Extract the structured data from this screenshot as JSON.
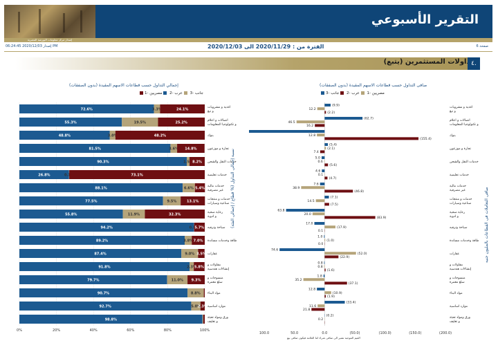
{
  "header": {
    "title": "التقرير الأسبوعي",
    "subtitle": "إصدار مركز معلومات البورصة المصرية",
    "page": "صفحة 6",
    "period_label": "الفترة من : 2020/11/29 الى 2020/12/03",
    "issued": "إصدار 2020/12/03 06:24:45 PM"
  },
  "section": {
    "number": "٤.",
    "title": "تداولات المستثمرين (يتبع)"
  },
  "colors": {
    "series1": "#1c5a91",
    "series2": "#b5a47a",
    "series3": "#6e0f12"
  },
  "footnote": "القيم الموجبة تشير الى صافى شراء اما العلامة فيكون صافى بيع",
  "chart_data": [
    {
      "type": "bar",
      "title": "إجمالي التداول حسب قطاعات الاسهم المقيدة (بدون الصفقات)",
      "ylabel": "نسبة إجمالى التداول (% قطاع / إجمالى الفئة)",
      "legend": [
        "مصريين -1",
        "عرب -2",
        "جانب -3"
      ],
      "stacked": true,
      "xticks": [
        "0%",
        "20%",
        "40%",
        "60%",
        "80%",
        "100%"
      ],
      "categories": [
        "اغذية و مشروبات و تبغ",
        "اتصالات و اعلام و تكنولوجيا المعلومات",
        "بنوك",
        "تجارة و موزعون",
        "خدمات النقل والشحن",
        "خدمات تعليمية",
        "خدمات مالية غير مصرفية",
        "خدمات و منتجات صناعية وسيارات",
        "رعاية صحية و ادوية",
        "سياحة وترفيه",
        "طاقة وخدمات مساندة",
        "عقارات",
        "مقاولات و إنشاءات هندسية",
        "منسوجات و سلع معمرة",
        "مواد البناء",
        "موارد اساسية",
        "ورق ومواد تعبئة و تغليف"
      ],
      "series": [
        {
          "name": "مصريين -1",
          "values": [
            72.6,
            55.3,
            48.8,
            81.5,
            90.3,
            26.8,
            88.1,
            77.5,
            55.8,
            94.2,
            89.2,
            87.4,
            91.8,
            79.7,
            90.7,
            92.7,
            98.8
          ],
          "labels": [
            "72.6%",
            "55.3%",
            "48.8%",
            "81.5%",
            "90.3%",
            "26.8%",
            "88.1%",
            "77.5%",
            "55.8%",
            "94.2%",
            "89.2%",
            "87.4%",
            "91.8%",
            "79.7%",
            "90.7%",
            "92.7%",
            "98.8%"
          ]
        },
        {
          "name": "عرب -2",
          "values": [
            3.3,
            19.5,
            3.0,
            3.6,
            1.5,
            0.1,
            6.6,
            9.5,
            11.9,
            0.1,
            3.8,
            9.0,
            2.3,
            11.0,
            8.8,
            5.0,
            0.4
          ],
          "labels": [
            "3.3%",
            "19.5%",
            "3.0%",
            "3.6%",
            "1.5%",
            "0.1%",
            "6.6%",
            "9.5%",
            "11.9%",
            "0.1%",
            "3.8%",
            "9.0%",
            "2.3%",
            "11.0%",
            "8.8%",
            "5.0%",
            ""
          ]
        },
        {
          "name": "جانب -3",
          "values": [
            24.1,
            25.2,
            48.2,
            14.8,
            8.2,
            73.1,
            5.4,
            13.1,
            32.3,
            5.7,
            7.0,
            3.5,
            5.8,
            9.3,
            0.5,
            2.3,
            0.8
          ],
          "labels": [
            "24.1%",
            "25.2%",
            "48.2%",
            "14.8%",
            "8.2%",
            "73.1%",
            "5.4%",
            "13.1%",
            "32.3%",
            "5.7%",
            "7.0%",
            "3.5%",
            "5.8%",
            "9.3%",
            "",
            "2.3%",
            ""
          ]
        }
      ]
    },
    {
      "type": "bar",
      "title": "صافى التداول حسب قطاعات الاسهم المقيدة (بدون الصفقات)",
      "ylabel": "صافى التعاملات فى القطاعات بالمليون جنيه",
      "legend": [
        "مصريين -1",
        "عرب -2",
        "جانب -3"
      ],
      "orientation": "horizontal",
      "xticks": [
        "100.0",
        "50.0",
        "0.0",
        "(50.0)",
        "(100.0)",
        "(150.0)",
        "(200.0)"
      ],
      "categories": [
        "اغذية و مشروبات و تبغ",
        "اتصالات و اعلام و تكنولوجيا المعلومات",
        "بنوك",
        "تجارة و موزعون",
        "خدمات النقل والشحن",
        "خدمات تعليمية",
        "خدمات مالية غير مصرفية",
        "خدمات و منتجات صناعية وسيارات",
        "رعاية صحية و ادوية",
        "سياحة وترفيه",
        "طاقة وخدمات مساندة",
        "عقارات",
        "مقاولات و إنشاءات هندسية",
        "منسوجات و سلع معمرة",
        "مواد البناء",
        "موارد اساسية",
        "ورق ومواد تعبئة و تغليف"
      ],
      "series": [
        {
          "name": "مصريين -1",
          "values": [
            -9.9,
            -62.7,
            142.7,
            -5.4,
            5.0,
            4.6,
            7.6,
            -7.1,
            63.8,
            17.0,
            1.0,
            74.6,
            0.8,
            1.8,
            12.8,
            -33.4,
            -0.2
          ],
          "labels": [
            "(9.9)",
            "(62.7)",
            "142.7",
            "(5.4)",
            "5.0",
            "4.6",
            "7.6",
            "(7.1)",
            "63.8",
            "17.0",
            "1.0",
            "74.6",
            "0.8",
            "1.8",
            "12.8",
            "(33.4)",
            "(0.2)"
          ]
        },
        {
          "name": "عرب -2",
          "values": [
            12.2,
            46.5,
            12.8,
            -2.1,
            0.6,
            0.1,
            38.9,
            14.5,
            20.0,
            -17.9,
            -1.0,
            -52.0,
            0.8,
            35.2,
            -10.9,
            11.6,
            0.2
          ],
          "labels": [
            "12.2",
            "46.5",
            "12.8",
            "(2.1)",
            "0.6",
            "0.1",
            "38.9",
            "14.5",
            "20.0",
            "(17.9)",
            "(1.0)",
            "(52.0)",
            "0.8",
            "35.2",
            "(10.9)",
            "11.6",
            "0.2"
          ]
        },
        {
          "name": "جانب -3",
          "values": [
            -2.2,
            16.2,
            -155.4,
            7.4,
            -5.6,
            -4.7,
            -46.8,
            -7.5,
            -83.9,
            0.1,
            0.0,
            -22.9,
            -1.6,
            -37.1,
            -1.9,
            21.8,
            0.0
          ],
          "labels": [
            "(2.2)",
            "16.2",
            "(155.4)",
            "7.4",
            "(5.6)",
            "(4.7)",
            "(46.8)",
            "(7.5)",
            "(83.9)",
            "0.1",
            "0.0",
            "(22.9)",
            "(1.6)",
            "(37.1)",
            "(1.9)",
            "21.8",
            ""
          ]
        }
      ]
    }
  ]
}
